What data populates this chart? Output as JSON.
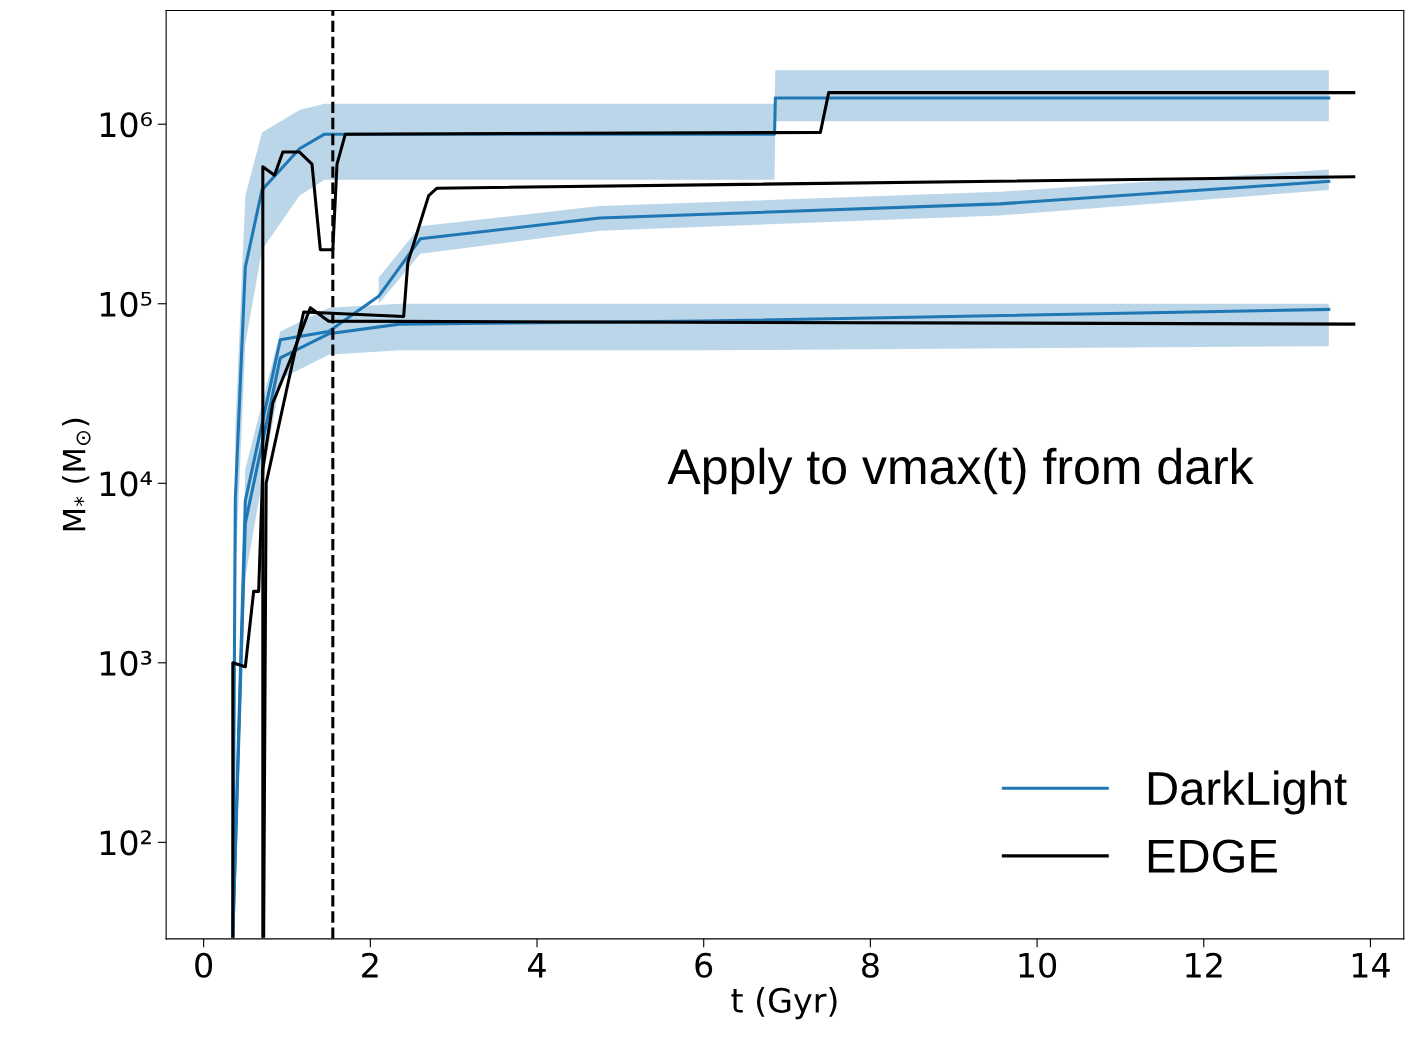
{
  "chart_data": {
    "type": "line",
    "xlabel": "t (Gyr)",
    "ylabel": "M$_{*}$ (M$_{⊙}$)",
    "log": "y",
    "xlim": [
      -0.45,
      14.4
    ],
    "xticks": [
      0,
      2,
      4,
      6,
      8,
      10,
      12,
      14
    ],
    "ylim": [
      29,
      4300000
    ],
    "yticks": [
      {
        "value": 100,
        "label": "10²"
      },
      {
        "value": 1000,
        "label": "10³"
      },
      {
        "value": 10000,
        "label": "10⁴"
      },
      {
        "value": 100000,
        "label": "10⁵"
      },
      {
        "value": 1000000,
        "label": "10⁶"
      }
    ],
    "grid": false,
    "legend": "bottom right",
    "marker": "none",
    "line_style": "solid",
    "ref_lines": [
      {
        "axis": "x",
        "value": 1.55,
        "label": null,
        "color": "#000000",
        "line_style": "dashed"
      }
    ],
    "annotations": [
      "Apply to vmax(t) from dark"
    ],
    "series": [
      {
        "name": "DarkLight",
        "color": "#1f77b4",
        "x": [
          0.35,
          0.38,
          0.5,
          0.7,
          1.15,
          1.45,
          6.85,
          6.86,
          13.5
        ],
        "values": [
          30,
          8200,
          160000,
          430000,
          730000,
          880000,
          880000,
          1400000,
          1400000
        ],
        "lower": [
          30,
          3000,
          60000,
          200000,
          400000,
          490000,
          490000,
          1040000,
          1040000
        ],
        "upper": [
          30,
          20000,
          400000,
          900000,
          1200000,
          1300000,
          1300000,
          2000000,
          2000000
        ]
      },
      {
        "color": "#1f77b4",
        "x": [
          0.35,
          0.5,
          0.92,
          1.5,
          2.1,
          2.6,
          4.75,
          9.55,
          13.5
        ],
        "values": [
          30,
          8000,
          63000,
          70000,
          110000,
          230000,
          300000,
          360000,
          480000
        ],
        "lower": [
          null,
          null,
          null,
          null,
          100000,
          190000,
          255000,
          310000,
          430000
        ],
        "upper": [
          null,
          null,
          null,
          null,
          140000,
          270000,
          350000,
          420000,
          560000
        ]
      },
      {
        "color": "#1f77b4",
        "x": [
          0.35,
          0.5,
          0.92,
          1.5,
          2.35,
          6.0,
          13.5
        ],
        "values": [
          30,
          6000,
          50000,
          68000,
          77000,
          80000,
          93000
        ],
        "lower": [
          30,
          3000,
          38000,
          52000,
          55000,
          55000,
          58000
        ],
        "upper": [
          30,
          12000,
          70000,
          95000,
          100000,
          100000,
          100000
        ]
      },
      {
        "name": "EDGE",
        "color": "#000000",
        "x": [
          0.71,
          0.71,
          0.85,
          0.95,
          1.15,
          1.3,
          1.4,
          1.55,
          1.6,
          1.7,
          7.4,
          7.5,
          13.8
        ],
        "values": [
          30,
          580000,
          520000,
          700000,
          700000,
          600000,
          200000,
          200000,
          600000,
          880000,
          900000,
          1500000,
          1500000
        ]
      },
      {
        "color": "#000000",
        "x": [
          0.72,
          0.75,
          1.2,
          2.4,
          2.45,
          2.7,
          2.8,
          13.8
        ],
        "values": [
          30,
          10000,
          90000,
          85000,
          170000,
          400000,
          440000,
          510000
        ]
      },
      {
        "color": "#000000",
        "x": [
          0.35,
          0.35,
          0.5,
          0.6,
          0.66,
          0.71,
          0.83,
          1.05,
          1.28,
          1.5,
          13.8
        ],
        "values": [
          30,
          1000,
          950,
          2500,
          2500,
          12000,
          28000,
          50000,
          95000,
          80000,
          77000
        ]
      }
    ]
  }
}
